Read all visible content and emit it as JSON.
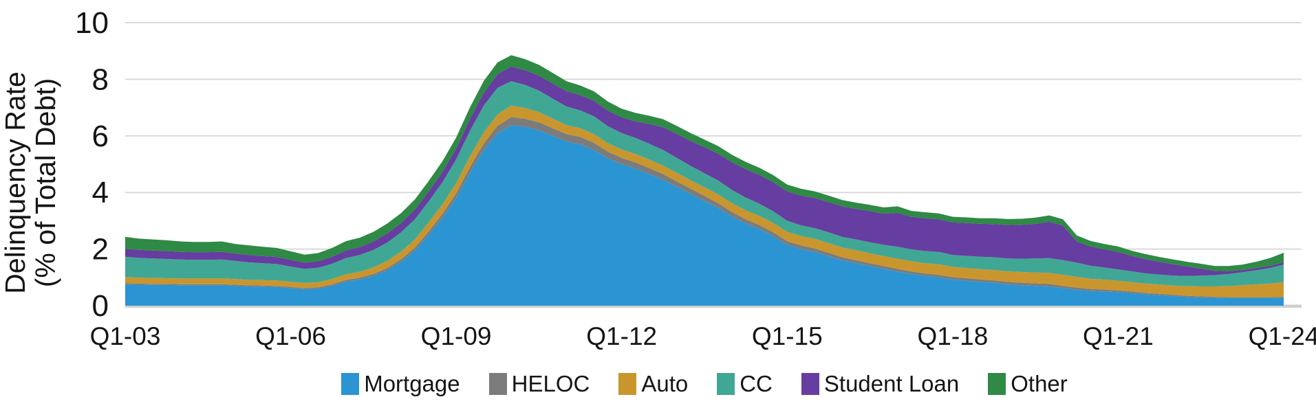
{
  "chart_data": {
    "type": "area",
    "stacked": true,
    "title": "",
    "ylabel": "Delinquency Rate (% of Total Debt)",
    "ylabel_lines": [
      "Delinquency Rate",
      "(% of Total Debt)"
    ],
    "background_color": "#ffffff",
    "grid": {
      "horizontal": true,
      "color": "#dadada",
      "baseline_color": "#cfcfcf"
    },
    "y_axis": {
      "min": 0,
      "max": 10,
      "step": 2,
      "ticks": [
        0,
        2,
        4,
        6,
        8,
        10
      ],
      "tick_labels": [
        "0",
        "2",
        "4",
        "6",
        "8",
        "10"
      ]
    },
    "x_axis": {
      "unit": "quarter",
      "tick_labels": [
        "Q1-03",
        "Q1-06",
        "Q1-09",
        "Q1-12",
        "Q1-15",
        "Q1-18",
        "Q1-21",
        "Q1-24"
      ],
      "tick_indices": [
        0,
        12,
        24,
        36,
        48,
        60,
        72,
        84
      ]
    },
    "x": [
      "Q1-03",
      "Q2-03",
      "Q3-03",
      "Q4-03",
      "Q1-04",
      "Q2-04",
      "Q3-04",
      "Q4-04",
      "Q1-05",
      "Q2-05",
      "Q3-05",
      "Q4-05",
      "Q1-06",
      "Q2-06",
      "Q3-06",
      "Q4-06",
      "Q1-07",
      "Q2-07",
      "Q3-07",
      "Q4-07",
      "Q1-08",
      "Q2-08",
      "Q3-08",
      "Q4-08",
      "Q1-09",
      "Q2-09",
      "Q3-09",
      "Q4-09",
      "Q1-10",
      "Q2-10",
      "Q3-10",
      "Q4-10",
      "Q1-11",
      "Q2-11",
      "Q3-11",
      "Q4-11",
      "Q1-12",
      "Q2-12",
      "Q3-12",
      "Q4-12",
      "Q1-13",
      "Q2-13",
      "Q3-13",
      "Q4-13",
      "Q1-14",
      "Q2-14",
      "Q3-14",
      "Q4-14",
      "Q1-15",
      "Q2-15",
      "Q3-15",
      "Q4-15",
      "Q1-16",
      "Q2-16",
      "Q3-16",
      "Q4-16",
      "Q1-17",
      "Q2-17",
      "Q3-17",
      "Q4-17",
      "Q1-18",
      "Q2-18",
      "Q3-18",
      "Q4-18",
      "Q1-19",
      "Q2-19",
      "Q3-19",
      "Q4-19",
      "Q1-20",
      "Q2-20",
      "Q3-20",
      "Q4-20",
      "Q1-21",
      "Q2-21",
      "Q3-21",
      "Q4-21",
      "Q1-22",
      "Q2-22",
      "Q3-22",
      "Q4-22",
      "Q1-23",
      "Q2-23",
      "Q3-23",
      "Q4-23",
      "Q1-24"
    ],
    "series": [
      {
        "name": "Mortgage",
        "color": "#2b94d3",
        "values": [
          0.75,
          0.74,
          0.73,
          0.73,
          0.72,
          0.72,
          0.72,
          0.72,
          0.7,
          0.68,
          0.67,
          0.66,
          0.62,
          0.58,
          0.6,
          0.7,
          0.85,
          0.93,
          1.05,
          1.25,
          1.55,
          1.95,
          2.5,
          3.1,
          3.8,
          4.7,
          5.5,
          6.1,
          6.38,
          6.32,
          6.2,
          6.0,
          5.8,
          5.7,
          5.5,
          5.2,
          5.0,
          4.85,
          4.65,
          4.45,
          4.2,
          3.95,
          3.7,
          3.45,
          3.15,
          2.9,
          2.7,
          2.45,
          2.15,
          2.0,
          1.9,
          1.75,
          1.6,
          1.5,
          1.4,
          1.3,
          1.2,
          1.12,
          1.05,
          1.0,
          0.92,
          0.88,
          0.84,
          0.8,
          0.75,
          0.72,
          0.7,
          0.68,
          0.62,
          0.56,
          0.52,
          0.5,
          0.48,
          0.44,
          0.4,
          0.37,
          0.34,
          0.31,
          0.29,
          0.28,
          0.27,
          0.27,
          0.27,
          0.27,
          0.28
        ]
      },
      {
        "name": "HELOC",
        "color": "#7c7c7c",
        "values": [
          0.04,
          0.04,
          0.04,
          0.04,
          0.04,
          0.04,
          0.04,
          0.04,
          0.04,
          0.04,
          0.04,
          0.04,
          0.04,
          0.04,
          0.05,
          0.05,
          0.06,
          0.06,
          0.07,
          0.08,
          0.09,
          0.1,
          0.12,
          0.14,
          0.17,
          0.2,
          0.23,
          0.26,
          0.29,
          0.28,
          0.28,
          0.27,
          0.26,
          0.26,
          0.25,
          0.24,
          0.22,
          0.21,
          0.21,
          0.2,
          0.19,
          0.18,
          0.18,
          0.17,
          0.16,
          0.15,
          0.15,
          0.14,
          0.13,
          0.13,
          0.12,
          0.12,
          0.11,
          0.11,
          0.1,
          0.1,
          0.1,
          0.09,
          0.09,
          0.09,
          0.09,
          0.09,
          0.09,
          0.09,
          0.09,
          0.09,
          0.09,
          0.09,
          0.08,
          0.08,
          0.07,
          0.07,
          0.06,
          0.06,
          0.05,
          0.05,
          0.04,
          0.04,
          0.04,
          0.03,
          0.03,
          0.03,
          0.03,
          0.03,
          0.03
        ]
      },
      {
        "name": "Auto",
        "color": "#c9962e",
        "values": [
          0.22,
          0.21,
          0.21,
          0.2,
          0.2,
          0.2,
          0.2,
          0.2,
          0.2,
          0.19,
          0.19,
          0.19,
          0.18,
          0.18,
          0.18,
          0.19,
          0.2,
          0.21,
          0.23,
          0.25,
          0.27,
          0.29,
          0.32,
          0.34,
          0.36,
          0.38,
          0.39,
          0.4,
          0.4,
          0.38,
          0.36,
          0.34,
          0.32,
          0.31,
          0.31,
          0.3,
          0.3,
          0.3,
          0.3,
          0.3,
          0.3,
          0.3,
          0.3,
          0.31,
          0.31,
          0.32,
          0.32,
          0.33,
          0.33,
          0.33,
          0.34,
          0.34,
          0.34,
          0.35,
          0.35,
          0.35,
          0.36,
          0.36,
          0.36,
          0.37,
          0.36,
          0.36,
          0.36,
          0.37,
          0.37,
          0.38,
          0.38,
          0.39,
          0.39,
          0.38,
          0.36,
          0.35,
          0.34,
          0.33,
          0.33,
          0.33,
          0.33,
          0.34,
          0.35,
          0.37,
          0.39,
          0.42,
          0.45,
          0.48,
          0.52
        ]
      },
      {
        "name": "CC",
        "color": "#41a795",
        "values": [
          0.72,
          0.7,
          0.69,
          0.68,
          0.67,
          0.66,
          0.66,
          0.67,
          0.64,
          0.62,
          0.6,
          0.58,
          0.54,
          0.5,
          0.51,
          0.54,
          0.57,
          0.59,
          0.62,
          0.65,
          0.68,
          0.71,
          0.74,
          0.78,
          0.84,
          0.9,
          0.95,
          0.94,
          0.86,
          0.82,
          0.76,
          0.7,
          0.66,
          0.63,
          0.63,
          0.6,
          0.58,
          0.57,
          0.56,
          0.55,
          0.53,
          0.51,
          0.5,
          0.49,
          0.47,
          0.45,
          0.43,
          0.41,
          0.39,
          0.38,
          0.38,
          0.38,
          0.38,
          0.38,
          0.39,
          0.4,
          0.42,
          0.42,
          0.43,
          0.44,
          0.42,
          0.43,
          0.44,
          0.45,
          0.46,
          0.47,
          0.5,
          0.52,
          0.52,
          0.5,
          0.46,
          0.43,
          0.4,
          0.38,
          0.36,
          0.35,
          0.35,
          0.36,
          0.38,
          0.4,
          0.43,
          0.46,
          0.5,
          0.55,
          0.62
        ]
      },
      {
        "name": "Student Loan",
        "color": "#663da0",
        "values": [
          0.28,
          0.28,
          0.28,
          0.28,
          0.27,
          0.27,
          0.27,
          0.27,
          0.26,
          0.26,
          0.25,
          0.25,
          0.24,
          0.22,
          0.23,
          0.25,
          0.27,
          0.28,
          0.3,
          0.32,
          0.33,
          0.34,
          0.35,
          0.36,
          0.38,
          0.42,
          0.45,
          0.48,
          0.52,
          0.52,
          0.53,
          0.54,
          0.54,
          0.54,
          0.55,
          0.55,
          0.56,
          0.58,
          0.7,
          0.8,
          0.85,
          0.88,
          0.92,
          0.95,
          0.98,
          1.0,
          1.02,
          1.03,
          1.04,
          1.05,
          1.06,
          1.07,
          1.08,
          1.08,
          1.1,
          1.1,
          1.2,
          1.15,
          1.16,
          1.15,
          1.15,
          1.16,
          1.16,
          1.17,
          1.18,
          1.2,
          1.22,
          1.28,
          1.22,
          0.75,
          0.68,
          0.64,
          0.62,
          0.55,
          0.5,
          0.45,
          0.4,
          0.33,
          0.25,
          0.15,
          0.1,
          0.08,
          0.08,
          0.08,
          0.08
        ]
      },
      {
        "name": "Other",
        "color": "#2e8a44",
        "values": [
          0.42,
          0.4,
          0.39,
          0.38,
          0.37,
          0.36,
          0.36,
          0.37,
          0.34,
          0.34,
          0.33,
          0.32,
          0.3,
          0.28,
          0.29,
          0.31,
          0.33,
          0.33,
          0.34,
          0.35,
          0.35,
          0.36,
          0.37,
          0.38,
          0.39,
          0.41,
          0.42,
          0.42,
          0.4,
          0.39,
          0.38,
          0.37,
          0.35,
          0.34,
          0.33,
          0.32,
          0.3,
          0.3,
          0.29,
          0.29,
          0.28,
          0.28,
          0.27,
          0.27,
          0.26,
          0.26,
          0.25,
          0.25,
          0.24,
          0.24,
          0.24,
          0.23,
          0.22,
          0.22,
          0.22,
          0.22,
          0.23,
          0.21,
          0.21,
          0.21,
          0.2,
          0.2,
          0.2,
          0.21,
          0.21,
          0.21,
          0.22,
          0.23,
          0.22,
          0.21,
          0.2,
          0.19,
          0.19,
          0.18,
          0.18,
          0.17,
          0.17,
          0.17,
          0.17,
          0.17,
          0.18,
          0.19,
          0.22,
          0.27,
          0.34
        ]
      }
    ],
    "legend": {
      "position": "bottom",
      "items": [
        "Mortgage",
        "HELOC",
        "Auto",
        "CC",
        "Student Loan",
        "Other"
      ]
    }
  }
}
